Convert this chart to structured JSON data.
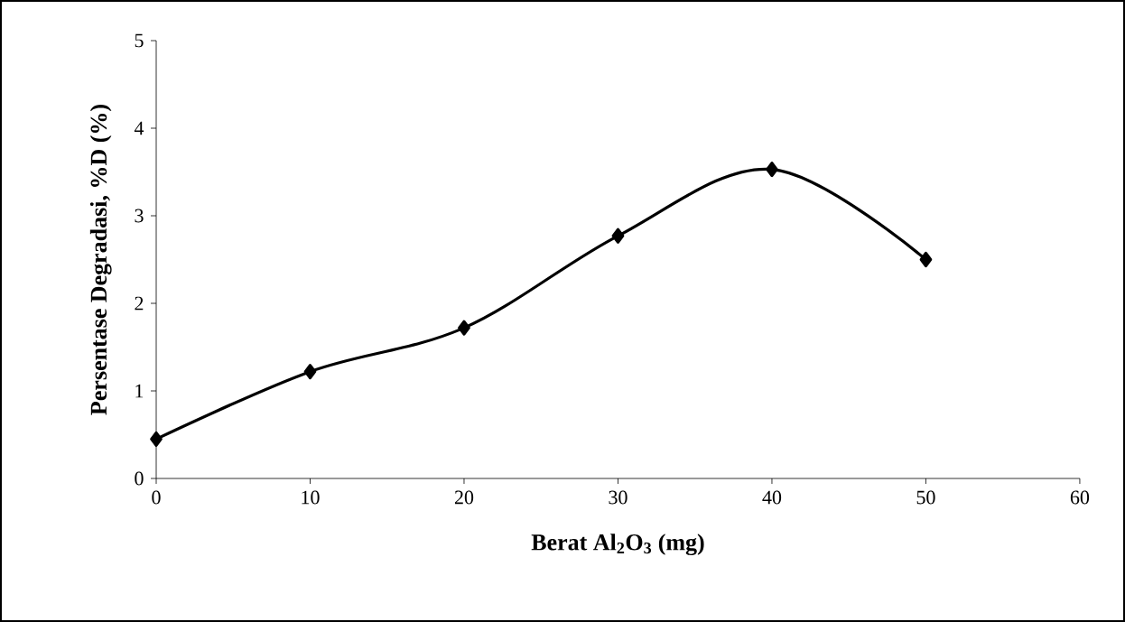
{
  "chart_data": {
    "type": "line",
    "xlabel": "**Berat Al$_{2}$O$_{3}$ (mg)**",
    "ylabel": "**Persentase Degradasi, %D (%)**",
    "x": [
      0,
      10,
      20,
      30,
      40,
      50
    ],
    "series": [
      {
        "color": "#000000",
        "values": [
          0.45,
          1.22,
          1.72,
          2.77,
          3.53,
          2.5
        ]
      }
    ],
    "xlim": [
      0,
      60
    ],
    "xticks": [
      0,
      10,
      20,
      30,
      40,
      50,
      60
    ],
    "ylim": [
      0,
      5
    ],
    "yticks": [
      0,
      1,
      2,
      3,
      4,
      5
    ],
    "grid": false,
    "marker": "diamond",
    "line_style": "solid"
  }
}
